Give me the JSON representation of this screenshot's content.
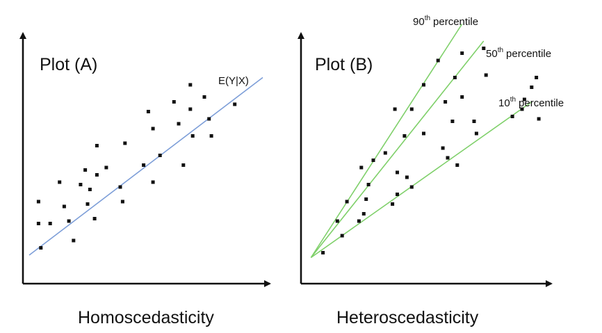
{
  "chart_data": [
    {
      "type": "scatter",
      "title": "Plot (A)",
      "caption": "Homoscedasticity",
      "colors": {
        "line": "#7d9ed8",
        "points": "#111111",
        "axes": "#111111"
      },
      "line_label": "E(Y|X)",
      "fit_line": {
        "x": [
          0,
          10
        ],
        "y": [
          0.8,
          8.1
        ]
      },
      "xlim": [
        0,
        10
      ],
      "ylim": [
        0,
        10
      ],
      "points": [
        {
          "x": 0.4,
          "y": 3.0
        },
        {
          "x": 0.4,
          "y": 2.1
        },
        {
          "x": 0.5,
          "y": 1.1
        },
        {
          "x": 0.9,
          "y": 2.1
        },
        {
          "x": 1.3,
          "y": 3.8
        },
        {
          "x": 1.5,
          "y": 2.8
        },
        {
          "x": 1.7,
          "y": 2.2
        },
        {
          "x": 1.9,
          "y": 1.4
        },
        {
          "x": 2.2,
          "y": 3.7
        },
        {
          "x": 2.4,
          "y": 4.3
        },
        {
          "x": 2.5,
          "y": 2.9
        },
        {
          "x": 2.6,
          "y": 3.5
        },
        {
          "x": 2.8,
          "y": 2.3
        },
        {
          "x": 2.9,
          "y": 5.3
        },
        {
          "x": 2.9,
          "y": 4.1
        },
        {
          "x": 3.3,
          "y": 4.4
        },
        {
          "x": 3.9,
          "y": 3.6
        },
        {
          "x": 4.0,
          "y": 3.0
        },
        {
          "x": 4.1,
          "y": 5.4
        },
        {
          "x": 4.9,
          "y": 4.5
        },
        {
          "x": 5.1,
          "y": 6.7
        },
        {
          "x": 5.3,
          "y": 3.8
        },
        {
          "x": 5.3,
          "y": 6.0
        },
        {
          "x": 5.6,
          "y": 4.9
        },
        {
          "x": 6.2,
          "y": 7.1
        },
        {
          "x": 6.4,
          "y": 6.2
        },
        {
          "x": 6.6,
          "y": 4.5
        },
        {
          "x": 6.9,
          "y": 7.8
        },
        {
          "x": 6.9,
          "y": 6.8
        },
        {
          "x": 7.0,
          "y": 5.7
        },
        {
          "x": 7.5,
          "y": 7.3
        },
        {
          "x": 7.7,
          "y": 6.4
        },
        {
          "x": 7.8,
          "y": 5.7
        },
        {
          "x": 8.8,
          "y": 7.0
        }
      ]
    },
    {
      "type": "scatter",
      "title": "Plot (B)",
      "caption": "Heteroscedasticity",
      "colors": {
        "lines": "#7fd06a",
        "points": "#111111",
        "axes": "#111111"
      },
      "xlim": [
        0,
        10
      ],
      "ylim": [
        0,
        10
      ],
      "quantile_lines": [
        {
          "base": "90",
          "suffix": "th",
          "label": "percentile",
          "x": [
            0.3,
            6.6
          ],
          "y": [
            0.7,
            10.3
          ]
        },
        {
          "base": "50",
          "suffix": "th",
          "label": "percentile",
          "x": [
            0.3,
            7.5
          ],
          "y": [
            0.7,
            9.6
          ]
        },
        {
          "base": "10",
          "suffix": "th",
          "label": "percentile",
          "x": [
            0.3,
            9.5
          ],
          "y": [
            0.7,
            7.1
          ]
        }
      ],
      "points": [
        {
          "x": 0.8,
          "y": 0.9
        },
        {
          "x": 1.4,
          "y": 2.2
        },
        {
          "x": 1.6,
          "y": 1.6
        },
        {
          "x": 1.8,
          "y": 3.0
        },
        {
          "x": 2.3,
          "y": 2.2
        },
        {
          "x": 2.4,
          "y": 4.4
        },
        {
          "x": 2.5,
          "y": 2.5
        },
        {
          "x": 2.6,
          "y": 3.1
        },
        {
          "x": 2.7,
          "y": 3.7
        },
        {
          "x": 2.9,
          "y": 4.7
        },
        {
          "x": 3.4,
          "y": 5.0
        },
        {
          "x": 3.7,
          "y": 2.9
        },
        {
          "x": 3.8,
          "y": 6.8
        },
        {
          "x": 3.9,
          "y": 3.3
        },
        {
          "x": 3.9,
          "y": 4.2
        },
        {
          "x": 4.2,
          "y": 5.7
        },
        {
          "x": 4.3,
          "y": 4.0
        },
        {
          "x": 4.5,
          "y": 3.6
        },
        {
          "x": 4.5,
          "y": 6.8
        },
        {
          "x": 5.0,
          "y": 5.8
        },
        {
          "x": 5.0,
          "y": 7.8
        },
        {
          "x": 5.6,
          "y": 8.8
        },
        {
          "x": 5.8,
          "y": 5.2
        },
        {
          "x": 5.9,
          "y": 7.1
        },
        {
          "x": 6.0,
          "y": 4.8
        },
        {
          "x": 6.2,
          "y": 6.3
        },
        {
          "x": 6.3,
          "y": 8.1
        },
        {
          "x": 6.4,
          "y": 4.5
        },
        {
          "x": 6.6,
          "y": 9.1
        },
        {
          "x": 6.6,
          "y": 7.3
        },
        {
          "x": 7.1,
          "y": 6.3
        },
        {
          "x": 7.2,
          "y": 5.8
        },
        {
          "x": 7.5,
          "y": 9.3
        },
        {
          "x": 7.6,
          "y": 8.2
        },
        {
          "x": 8.7,
          "y": 6.5
        },
        {
          "x": 9.1,
          "y": 6.8
        },
        {
          "x": 9.2,
          "y": 7.2
        },
        {
          "x": 9.5,
          "y": 7.7
        },
        {
          "x": 9.7,
          "y": 8.1
        },
        {
          "x": 9.8,
          "y": 6.4
        }
      ]
    }
  ]
}
